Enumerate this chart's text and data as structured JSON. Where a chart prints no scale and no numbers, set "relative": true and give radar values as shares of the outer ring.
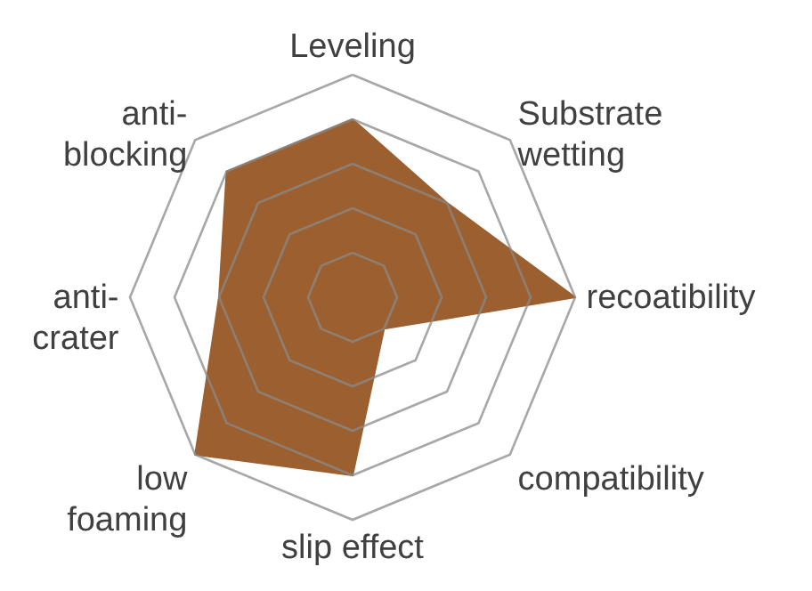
{
  "chart_data": {
    "type": "radar",
    "relative": true,
    "categories": [
      "Leveling",
      "Substrate\nwetting",
      "recoatibility",
      "compatibility",
      "slip effect",
      "low\nfoaming",
      "anti-\ncrater",
      "anti-\nblocking"
    ],
    "series": [
      {
        "color": "#9c5f30",
        "values": [
          0.8,
          0.6,
          1.0,
          0.2,
          0.8,
          1.0,
          0.6,
          0.8
        ]
      }
    ]
  }
}
